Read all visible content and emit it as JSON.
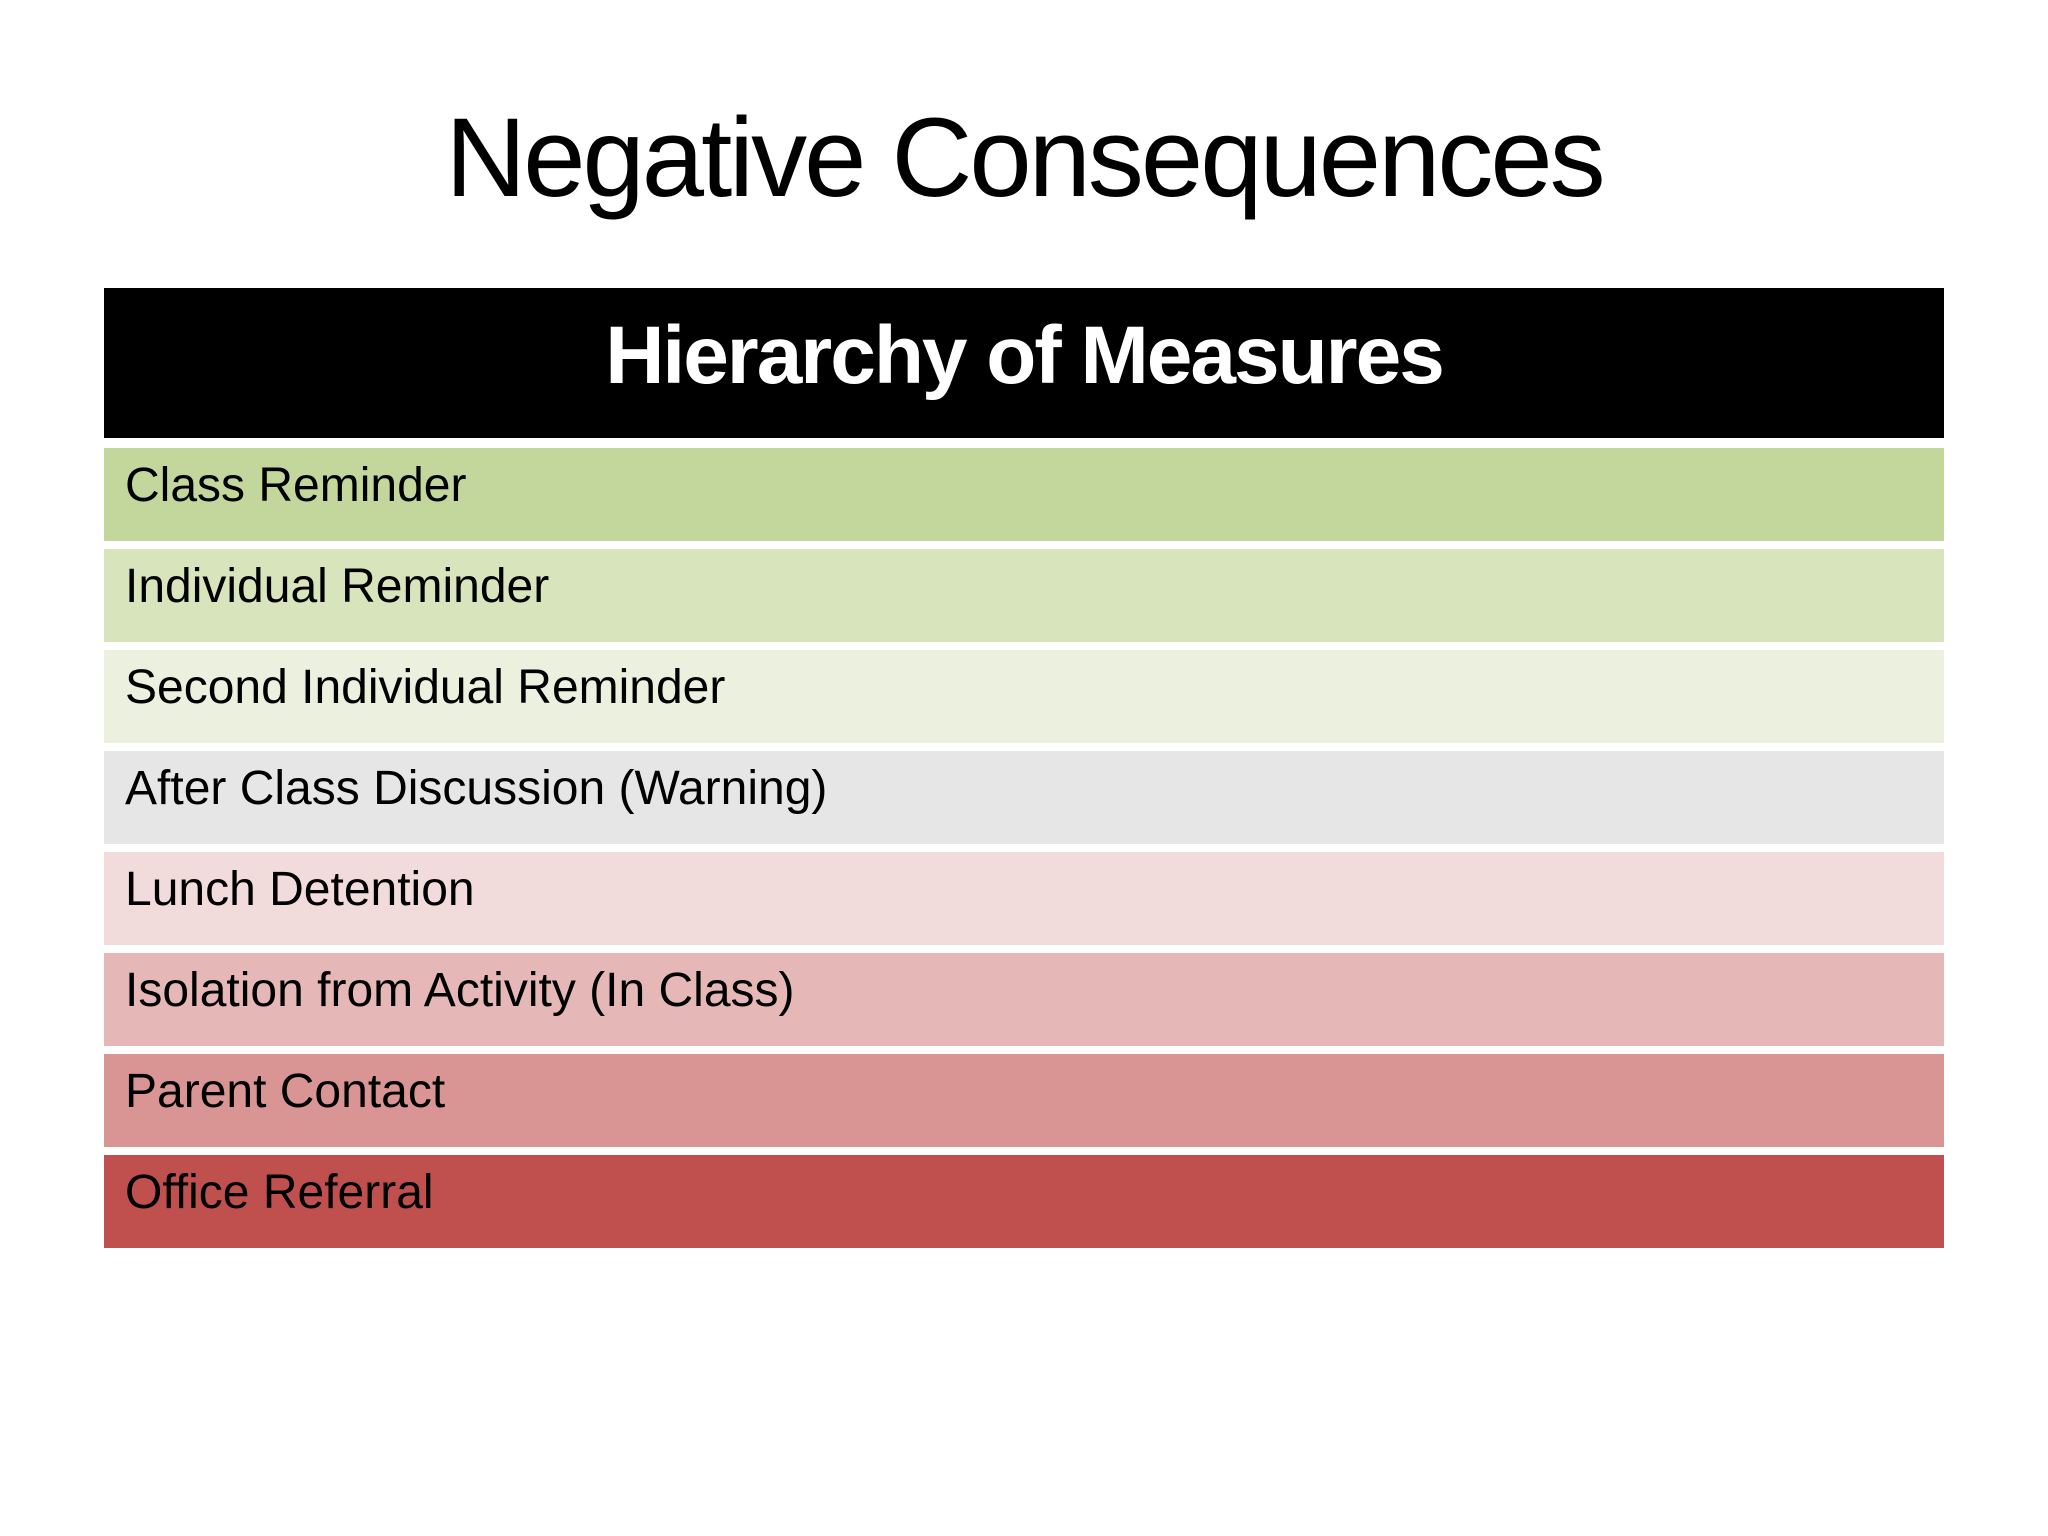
{
  "slide": {
    "title": "Negative Consequences",
    "background_color": "#ffffff",
    "title_color": "#000000"
  },
  "table": {
    "header": {
      "label": "Hierarchy of Measures",
      "bg": "#000000",
      "text_color": "#ffffff"
    },
    "rows": [
      {
        "label": "Class Reminder",
        "color": "#c3d69b"
      },
      {
        "label": "Individual Reminder",
        "color": "#d7e4bc"
      },
      {
        "label": "Second Individual Reminder",
        "color": "#ebf1de"
      },
      {
        "label": "After Class Discussion (Warning)",
        "color": "#e6e6e7"
      },
      {
        "label": "Lunch Detention",
        "color": "#f2dbdb"
      },
      {
        "label": "Isolation from Activity (In Class)",
        "color": "#e5b8b7"
      },
      {
        "label": "Parent Contact",
        "color": "#d99594"
      },
      {
        "label": "Office Referral",
        "color": "#c0504d"
      }
    ]
  }
}
